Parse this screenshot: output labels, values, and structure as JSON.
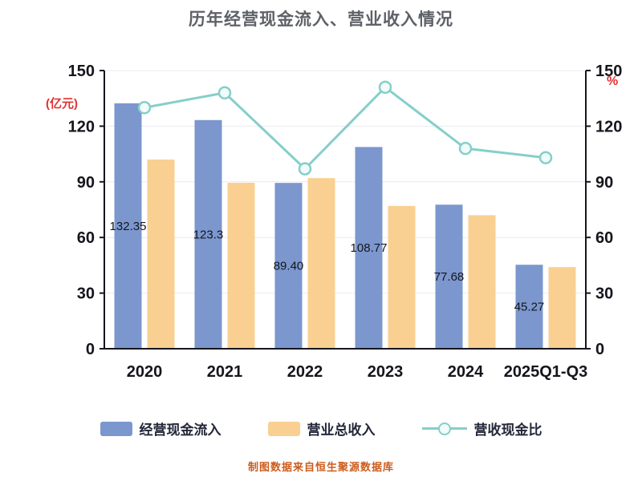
{
  "title": "历年经营现金流入、营业收入情况",
  "footer": "制图数据来自恒生聚源数据库",
  "axes": {
    "ticks": [
      0,
      30,
      60,
      90,
      120,
      150
    ],
    "left_unit": "(亿元)",
    "right_unit": "%",
    "unit_color": "#e03131",
    "tick_color": "#15151d",
    "grid_color": "#ece9f3"
  },
  "chart_data": {
    "type": "bar+line",
    "title": "历年经营现金流入、营业收入情况",
    "categories": [
      "2020",
      "2021",
      "2022",
      "2023",
      "2024",
      "2025Q1-Q3"
    ],
    "series": [
      {
        "name": "经营现金流入",
        "type": "bar",
        "color": "#7b97ce",
        "values": [
          132.35,
          123.3,
          89.4,
          108.77,
          77.68,
          45.27
        ],
        "labels": [
          "132.35",
          "123.3",
          "89.40",
          "108.77",
          "77.68",
          "45.27"
        ]
      },
      {
        "name": "营业总收入",
        "type": "bar",
        "color": "#f9d092",
        "values": [
          102,
          89.5,
          92,
          77,
          72,
          44
        ]
      },
      {
        "name": "营收现金比",
        "type": "line",
        "axis": "right",
        "color": "#85cfca",
        "values": [
          130,
          138,
          97,
          141,
          108,
          103
        ]
      }
    ],
    "ylabel": "(亿元)",
    "y2label": "%",
    "ylim": [
      0,
      150
    ],
    "y2lim": [
      0,
      150
    ],
    "grid": true,
    "legend_position": "bottom"
  }
}
